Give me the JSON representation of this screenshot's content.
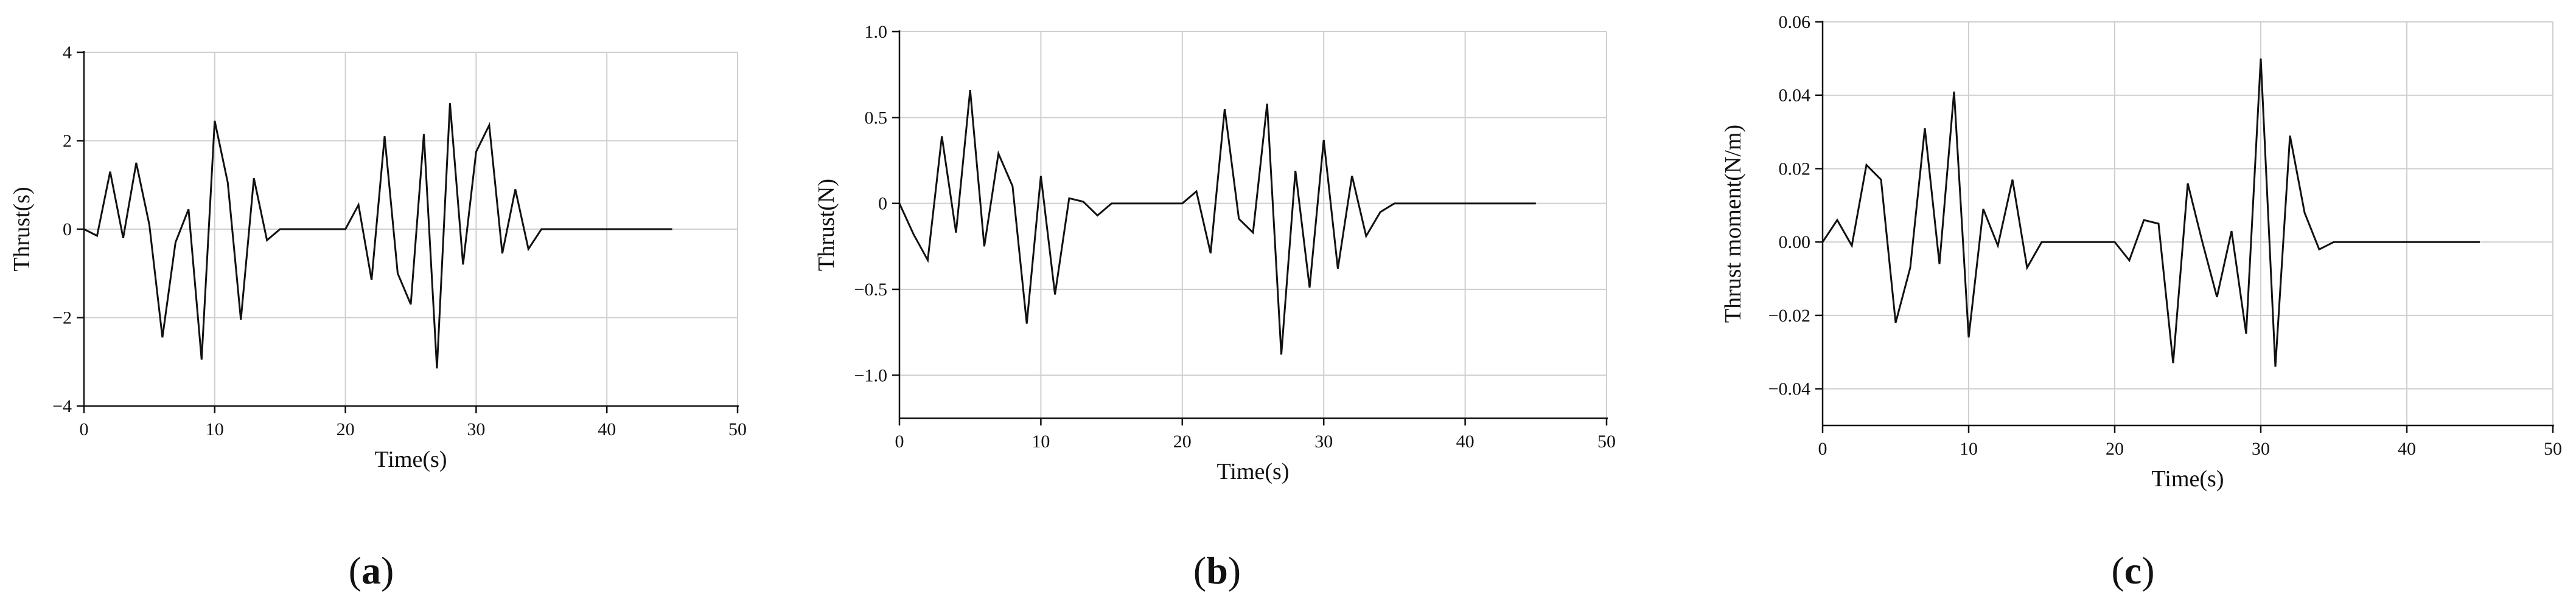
{
  "chart_data": [
    {
      "type": "line",
      "panel": "(a)",
      "caption_letter": "a",
      "xlabel": "Time(s)",
      "ylabel": "Thrust(s)",
      "xlim": [
        0,
        50
      ],
      "ylim": [
        -4,
        4
      ],
      "xticks": [
        0,
        10,
        20,
        30,
        40,
        50
      ],
      "yticks": [
        -4,
        -2,
        0,
        2,
        4
      ],
      "ytick_labels": [
        "−4",
        "−2",
        "0",
        "2",
        "4"
      ],
      "grid": true,
      "series": [
        {
          "x": [
            0,
            1,
            2,
            3,
            4,
            5,
            6,
            7,
            8,
            9,
            10,
            11,
            12,
            13,
            14,
            15,
            16,
            17,
            18,
            19,
            20,
            21,
            22,
            23,
            24,
            25,
            26,
            27,
            28,
            29,
            30,
            31,
            32,
            33,
            34,
            35,
            36,
            37,
            38,
            39,
            40,
            41,
            42,
            43,
            44,
            45
          ],
          "values": [
            0,
            -0.15,
            1.3,
            -0.2,
            1.5,
            0.1,
            -2.45,
            -0.3,
            0.45,
            -2.95,
            2.45,
            1.05,
            -2.05,
            1.15,
            -0.25,
            0,
            0,
            0,
            0,
            0,
            0,
            0.55,
            -1.15,
            2.1,
            -1.0,
            -1.7,
            2.15,
            -3.15,
            2.85,
            -0.8,
            1.75,
            2.35,
            -0.55,
            0.9,
            -0.45,
            0,
            0,
            0,
            0,
            0,
            0,
            0,
            0,
            0,
            0,
            0
          ]
        }
      ]
    },
    {
      "type": "line",
      "panel": "(b)",
      "caption_letter": "b",
      "xlabel": "Time(s)",
      "ylabel": "Thrust(N)",
      "xlim": [
        0,
        50
      ],
      "ylim": [
        -1.25,
        1.0
      ],
      "xticks": [
        0,
        10,
        20,
        30,
        40,
        50
      ],
      "yticks": [
        -1.0,
        -0.5,
        0,
        0.5,
        1.0
      ],
      "ytick_labels": [
        "−1.0",
        "−0.5",
        "0",
        "0.5",
        "1.0"
      ],
      "grid": true,
      "series": [
        {
          "x": [
            0,
            1,
            2,
            3,
            4,
            5,
            6,
            7,
            8,
            9,
            10,
            11,
            12,
            13,
            14,
            15,
            16,
            17,
            18,
            19,
            20,
            21,
            22,
            23,
            24,
            25,
            26,
            27,
            28,
            29,
            30,
            31,
            32,
            33,
            34,
            35,
            36,
            37,
            38,
            39,
            40,
            41,
            42,
            43,
            44,
            45
          ],
          "values": [
            0,
            -0.18,
            -0.33,
            0.39,
            -0.17,
            0.66,
            -0.25,
            0.29,
            0.1,
            -0.7,
            0.16,
            -0.53,
            0.03,
            0.01,
            -0.07,
            0,
            0,
            0,
            0,
            0,
            0,
            0.07,
            -0.29,
            0.55,
            -0.09,
            -0.17,
            0.58,
            -0.88,
            0.19,
            -0.49,
            0.37,
            -0.38,
            0.16,
            -0.19,
            -0.05,
            0,
            0,
            0,
            0,
            0,
            0,
            0,
            0,
            0,
            0,
            0
          ]
        }
      ]
    },
    {
      "type": "line",
      "panel": "(c)",
      "caption_letter": "c",
      "xlabel": "Time(s)",
      "ylabel": "Thrust moment(N/m)",
      "xlim": [
        0,
        50
      ],
      "ylim": [
        -0.05,
        0.06
      ],
      "xticks": [
        0,
        10,
        20,
        30,
        40,
        50
      ],
      "yticks": [
        -0.04,
        -0.02,
        0.0,
        0.02,
        0.04,
        0.06
      ],
      "ytick_labels": [
        "−0.04",
        "−0.02",
        "0.00",
        "0.02",
        "0.04",
        "0.06"
      ],
      "grid": true,
      "series": [
        {
          "x": [
            0,
            1,
            2,
            3,
            4,
            5,
            6,
            7,
            8,
            9,
            10,
            11,
            12,
            13,
            14,
            15,
            16,
            17,
            18,
            19,
            20,
            21,
            22,
            23,
            24,
            25,
            26,
            27,
            28,
            29,
            30,
            31,
            32,
            33,
            34,
            35,
            36,
            37,
            38,
            39,
            40,
            41,
            42,
            43,
            44,
            45
          ],
          "values": [
            0,
            0.006,
            -0.001,
            0.021,
            0.017,
            -0.022,
            -0.007,
            0.031,
            -0.006,
            0.041,
            -0.026,
            0.009,
            -0.001,
            0.017,
            -0.007,
            0,
            0,
            0,
            0,
            0,
            0,
            -0.005,
            0.006,
            0.005,
            -0.033,
            0.016,
            0,
            -0.015,
            0.003,
            -0.025,
            0.05,
            -0.034,
            0.029,
            0.008,
            -0.002,
            0,
            0,
            0,
            0,
            0,
            0,
            0,
            0,
            0,
            0,
            0
          ]
        }
      ]
    }
  ]
}
